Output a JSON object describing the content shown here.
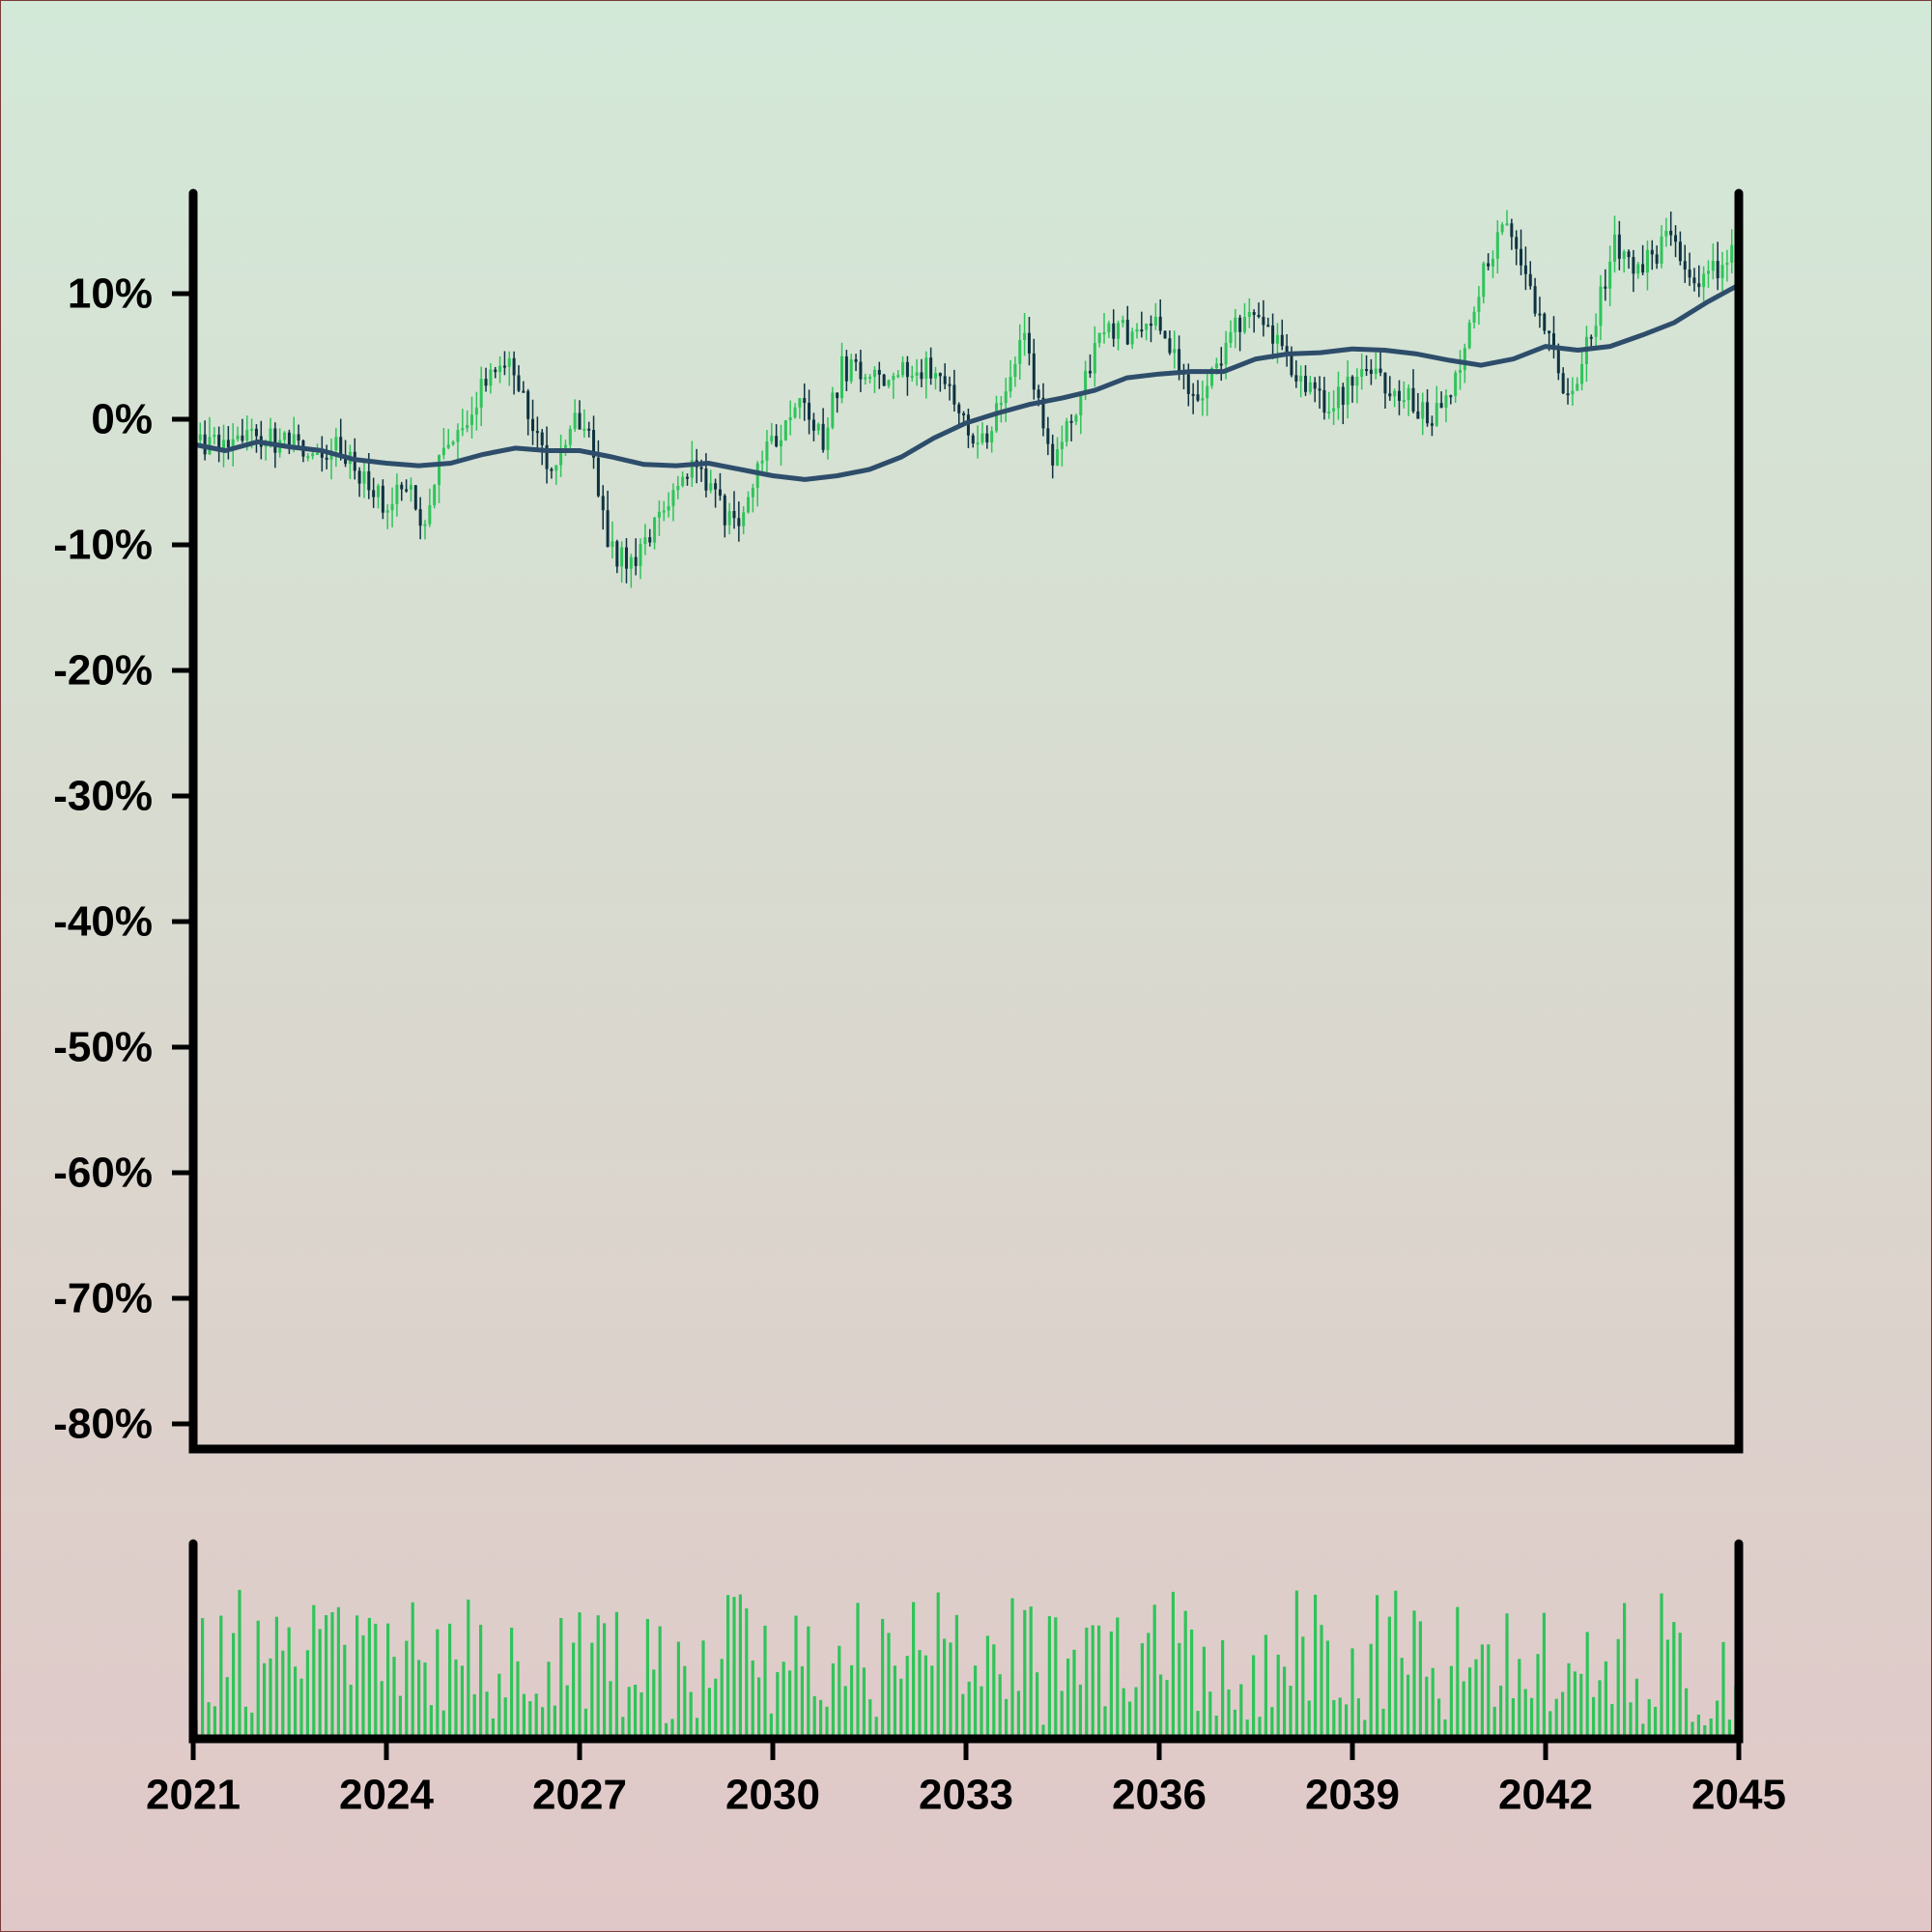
{
  "chart_data": {
    "type": "candlestick",
    "x_range": [
      2021,
      2045
    ],
    "x_ticks": [
      "2021",
      "2024",
      "2027",
      "2030",
      "2033",
      "2036",
      "2039",
      "2042",
      "2045"
    ],
    "y_range": [
      -0.82,
      0.18
    ],
    "y_unit": "fraction",
    "y_ticks": [
      "10%",
      "0%",
      "-10%",
      "-20%",
      "-30%",
      "-40%",
      "-50%",
      "-60%",
      "-70%",
      "-80%"
    ],
    "y_tick_values": [
      0.1,
      0.0,
      -0.1,
      -0.2,
      -0.3,
      -0.4,
      -0.5,
      -0.6,
      -0.7,
      -0.8
    ],
    "price_path": [
      [
        2021.0,
        -0.02
      ],
      [
        2021.5,
        -0.02
      ],
      [
        2022.0,
        -0.01
      ],
      [
        2022.5,
        -0.02
      ],
      [
        2023.0,
        -0.03
      ],
      [
        2023.3,
        -0.02
      ],
      [
        2023.6,
        -0.04
      ],
      [
        2024.0,
        -0.07
      ],
      [
        2024.3,
        -0.05
      ],
      [
        2024.6,
        -0.08
      ],
      [
        2024.9,
        -0.03
      ],
      [
        2025.3,
        -0.01
      ],
      [
        2025.6,
        0.04
      ],
      [
        2025.9,
        0.05
      ],
      [
        2026.2,
        0.01
      ],
      [
        2026.6,
        -0.04
      ],
      [
        2026.9,
        0.0
      ],
      [
        2027.2,
        -0.02
      ],
      [
        2027.5,
        -0.1
      ],
      [
        2027.8,
        -0.12
      ],
      [
        2028.1,
        -0.09
      ],
      [
        2028.4,
        -0.06
      ],
      [
        2028.8,
        -0.03
      ],
      [
        2029.2,
        -0.07
      ],
      [
        2029.5,
        -0.09
      ],
      [
        2029.8,
        -0.04
      ],
      [
        2030.1,
        -0.01
      ],
      [
        2030.5,
        0.01
      ],
      [
        2030.8,
        -0.02
      ],
      [
        2031.1,
        0.04
      ],
      [
        2031.5,
        0.04
      ],
      [
        2031.8,
        0.02
      ],
      [
        2032.1,
        0.04
      ],
      [
        2032.5,
        0.04
      ],
      [
        2032.8,
        0.02
      ],
      [
        2033.2,
        -0.03
      ],
      [
        2033.6,
        0.02
      ],
      [
        2033.9,
        0.07
      ],
      [
        2034.2,
        0.01
      ],
      [
        2034.4,
        -0.03
      ],
      [
        2034.7,
        0.0
      ],
      [
        2035.0,
        0.05
      ],
      [
        2035.4,
        0.08
      ],
      [
        2035.7,
        0.06
      ],
      [
        2036.0,
        0.08
      ],
      [
        2036.3,
        0.05
      ],
      [
        2036.6,
        0.02
      ],
      [
        2036.9,
        0.04
      ],
      [
        2037.3,
        0.08
      ],
      [
        2037.6,
        0.09
      ],
      [
        2037.9,
        0.06
      ],
      [
        2038.3,
        0.03
      ],
      [
        2038.6,
        0.01
      ],
      [
        2038.9,
        0.02
      ],
      [
        2039.2,
        0.04
      ],
      [
        2039.5,
        0.03
      ],
      [
        2039.9,
        0.02
      ],
      [
        2040.2,
        0.0
      ],
      [
        2040.5,
        0.01
      ],
      [
        2040.8,
        0.06
      ],
      [
        2041.1,
        0.12
      ],
      [
        2041.4,
        0.15
      ],
      [
        2041.7,
        0.11
      ],
      [
        2042.0,
        0.07
      ],
      [
        2042.3,
        0.03
      ],
      [
        2042.5,
        0.02
      ],
      [
        2042.8,
        0.08
      ],
      [
        2043.1,
        0.14
      ],
      [
        2043.4,
        0.12
      ],
      [
        2043.7,
        0.13
      ],
      [
        2044.0,
        0.15
      ],
      [
        2044.3,
        0.11
      ],
      [
        2044.6,
        0.12
      ],
      [
        2045.0,
        0.13
      ]
    ],
    "moving_average": [
      [
        2021.0,
        -0.02
      ],
      [
        2021.5,
        -0.025
      ],
      [
        2022.0,
        -0.018
      ],
      [
        2022.5,
        -0.022
      ],
      [
        2023.0,
        -0.025
      ],
      [
        2023.5,
        -0.032
      ],
      [
        2024.0,
        -0.035
      ],
      [
        2024.5,
        -0.037
      ],
      [
        2025.0,
        -0.035
      ],
      [
        2025.5,
        -0.028
      ],
      [
        2026.0,
        -0.023
      ],
      [
        2026.5,
        -0.025
      ],
      [
        2027.0,
        -0.025
      ],
      [
        2027.5,
        -0.03
      ],
      [
        2028.0,
        -0.036
      ],
      [
        2028.5,
        -0.037
      ],
      [
        2029.0,
        -0.035
      ],
      [
        2029.5,
        -0.04
      ],
      [
        2030.0,
        -0.045
      ],
      [
        2030.5,
        -0.048
      ],
      [
        2031.0,
        -0.045
      ],
      [
        2031.5,
        -0.04
      ],
      [
        2032.0,
        -0.03
      ],
      [
        2032.5,
        -0.015
      ],
      [
        2033.0,
        -0.003
      ],
      [
        2033.5,
        0.005
      ],
      [
        2034.0,
        0.012
      ],
      [
        2034.5,
        0.017
      ],
      [
        2035.0,
        0.023
      ],
      [
        2035.5,
        0.033
      ],
      [
        2036.0,
        0.036
      ],
      [
        2036.5,
        0.038
      ],
      [
        2037.0,
        0.038
      ],
      [
        2037.5,
        0.048
      ],
      [
        2038.0,
        0.052
      ],
      [
        2038.5,
        0.053
      ],
      [
        2039.0,
        0.056
      ],
      [
        2039.5,
        0.055
      ],
      [
        2040.0,
        0.052
      ],
      [
        2040.5,
        0.047
      ],
      [
        2041.0,
        0.043
      ],
      [
        2041.5,
        0.048
      ],
      [
        2042.0,
        0.058
      ],
      [
        2042.5,
        0.055
      ],
      [
        2043.0,
        0.058
      ],
      [
        2043.5,
        0.067
      ],
      [
        2044.0,
        0.077
      ],
      [
        2044.5,
        0.093
      ],
      [
        2045.0,
        0.107
      ]
    ],
    "volume_visible": true,
    "legend": "none",
    "grid": false,
    "colors": {
      "up": "#2fc45a",
      "down": "#0e3240",
      "moving_average": "#2e4d6b",
      "volume": "#2fc45a",
      "axes": "#000000"
    }
  }
}
